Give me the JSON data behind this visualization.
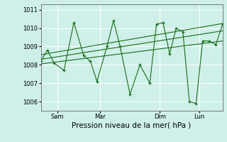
{
  "title": "",
  "xlabel": "Pression niveau de la mer( hPa )",
  "ylabel": "",
  "bg_color": "#cef0e8",
  "grid_color": "#ffffff",
  "line_color": "#1a6b1a",
  "marker_color": "#1a6b1a",
  "ylim": [
    1005.5,
    1011.3
  ],
  "xlim": [
    0,
    55
  ],
  "yticks": [
    1006,
    1007,
    1008,
    1009,
    1010,
    1011
  ],
  "xtick_positions": [
    5,
    18,
    36,
    48
  ],
  "xtick_labels": [
    "Sam",
    "Mar",
    "Dim",
    "Lun"
  ],
  "data_x": [
    0,
    2,
    4,
    7,
    10,
    13,
    15,
    17,
    20,
    22,
    24,
    27,
    30,
    33,
    35,
    37,
    39,
    41,
    43,
    45,
    47,
    49,
    51,
    53,
    55
  ],
  "data_y": [
    1008.2,
    1008.8,
    1008.1,
    1007.7,
    1010.3,
    1008.5,
    1008.2,
    1007.1,
    1009.0,
    1010.4,
    1009.0,
    1006.4,
    1008.0,
    1007.0,
    1010.2,
    1010.3,
    1008.6,
    1010.0,
    1009.8,
    1006.0,
    1005.9,
    1009.3,
    1009.3,
    1009.1,
    1010.2
  ],
  "trend1_x": [
    0,
    55
  ],
  "trend1_y": [
    1008.05,
    1009.3
  ],
  "trend2_x": [
    0,
    55
  ],
  "trend2_y": [
    1008.3,
    1009.85
  ],
  "trend3_x": [
    0,
    55
  ],
  "trend3_y": [
    1008.55,
    1010.25
  ]
}
